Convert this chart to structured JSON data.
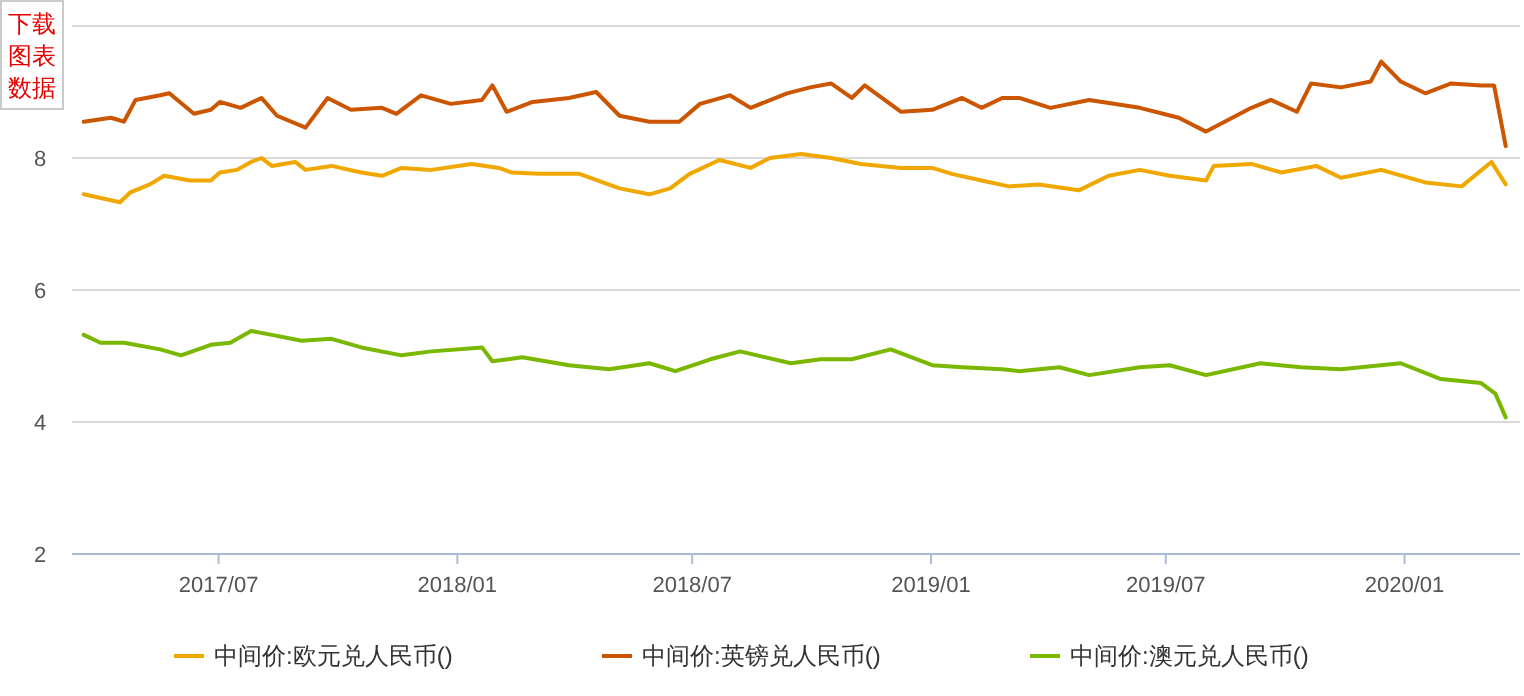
{
  "chart_data": {
    "type": "line",
    "xlim": [
      "2017-03-10",
      "2020-03-30"
    ],
    "ylim": [
      2,
      10
    ],
    "xticks": [
      {
        "value": "2017-07-01",
        "label": "2017/07"
      },
      {
        "value": "2018-01-01",
        "label": "2018/01"
      },
      {
        "value": "2018-07-01",
        "label": "2018/07"
      },
      {
        "value": "2019-01-01",
        "label": "2019/01"
      },
      {
        "value": "2019-07-01",
        "label": "2019/07"
      },
      {
        "value": "2020-01-01",
        "label": "2020/01"
      }
    ],
    "yticks": [
      2,
      4,
      6,
      8,
      {
        "value": 10,
        "label": null
      }
    ],
    "grid": "y",
    "legend": "bottom",
    "marker": "none",
    "line_style": "solid",
    "annotations": [
      "下载图表数据"
    ],
    "series": [
      {
        "name": "中间价:欧元兑人民币()",
        "color": "#f0a800",
        "x": [
          "2017-03-19",
          "2017-04-09",
          "2017-04-16",
          "2017-04-24",
          "2017-05-09",
          "2017-05-20",
          "2017-06-09",
          "2017-06-25",
          "2017-07-02",
          "2017-07-15",
          "2017-07-26",
          "2017-08-03",
          "2017-08-11",
          "2017-08-29",
          "2017-09-06",
          "2017-09-26",
          "2017-10-19",
          "2017-11-04",
          "2017-11-19",
          "2017-12-12",
          "2018-01-12",
          "2018-02-02",
          "2018-02-12",
          "2018-03-05",
          "2018-04-05",
          "2018-05-06",
          "2018-05-29",
          "2018-06-14",
          "2018-06-29",
          "2018-07-22",
          "2018-08-15",
          "2018-08-30",
          "2018-09-23",
          "2018-10-16",
          "2018-11-08",
          "2018-12-09",
          "2019-01-02",
          "2019-01-17",
          "2019-02-09",
          "2019-03-02",
          "2019-03-25",
          "2019-04-25",
          "2019-05-18",
          "2019-06-11",
          "2019-07-04",
          "2019-08-01",
          "2019-08-07",
          "2019-09-05",
          "2019-09-28",
          "2019-10-25",
          "2019-11-13",
          "2019-12-14",
          "2020-01-17",
          "2020-02-14",
          "2020-03-08",
          "2020-03-19"
        ],
        "values": [
          7.45,
          7.36,
          7.33,
          7.48,
          7.6,
          7.73,
          7.66,
          7.66,
          7.78,
          7.82,
          7.94,
          8.0,
          7.88,
          7.94,
          7.82,
          7.88,
          7.78,
          7.73,
          7.85,
          7.82,
          7.91,
          7.85,
          7.78,
          7.76,
          7.76,
          7.54,
          7.45,
          7.54,
          7.76,
          7.97,
          7.85,
          8.0,
          8.06,
          8.0,
          7.91,
          7.85,
          7.85,
          7.76,
          7.66,
          7.57,
          7.6,
          7.51,
          7.73,
          7.82,
          7.73,
          7.66,
          7.88,
          7.91,
          7.78,
          7.88,
          7.7,
          7.82,
          7.63,
          7.57,
          7.94,
          7.6
        ]
      },
      {
        "name": "中间价:英镑兑人民币()",
        "color": "#cc5500",
        "x": [
          "2017-03-19",
          "2017-04-09",
          "2017-04-19",
          "2017-04-28",
          "2017-05-17",
          "2017-05-24",
          "2017-06-12",
          "2017-06-25",
          "2017-07-02",
          "2017-07-18",
          "2017-08-03",
          "2017-08-15",
          "2017-09-06",
          "2017-09-23",
          "2017-10-11",
          "2017-11-04",
          "2017-11-15",
          "2017-12-04",
          "2017-12-27",
          "2018-01-20",
          "2018-01-28",
          "2018-02-08",
          "2018-02-28",
          "2018-03-28",
          "2018-04-18",
          "2018-05-06",
          "2018-05-29",
          "2018-06-21",
          "2018-07-07",
          "2018-07-30",
          "2018-08-15",
          "2018-09-12",
          "2018-09-30",
          "2018-10-16",
          "2018-11-01",
          "2018-11-11",
          "2018-12-09",
          "2019-01-02",
          "2019-01-25",
          "2019-02-09",
          "2019-02-25",
          "2019-03-10",
          "2019-04-03",
          "2019-05-03",
          "2019-06-11",
          "2019-07-11",
          "2019-08-01",
          "2019-09-05",
          "2019-09-20",
          "2019-10-10",
          "2019-10-21",
          "2019-11-13",
          "2019-12-06",
          "2019-12-14",
          "2019-12-29",
          "2020-01-17",
          "2020-02-06",
          "2020-02-29",
          "2020-03-10",
          "2020-03-19"
        ],
        "values": [
          8.55,
          8.61,
          8.55,
          8.88,
          8.95,
          8.98,
          8.67,
          8.73,
          8.85,
          8.76,
          8.91,
          8.64,
          8.46,
          8.91,
          8.73,
          8.76,
          8.67,
          8.95,
          8.82,
          8.88,
          9.1,
          8.7,
          8.85,
          8.91,
          9.0,
          8.64,
          8.55,
          8.55,
          8.82,
          8.95,
          8.76,
          8.98,
          9.07,
          9.13,
          8.91,
          9.1,
          8.7,
          8.73,
          8.91,
          8.76,
          8.91,
          8.91,
          8.76,
          8.88,
          8.76,
          8.61,
          8.4,
          8.76,
          8.88,
          8.7,
          9.13,
          9.07,
          9.16,
          9.46,
          9.16,
          8.98,
          9.13,
          9.1,
          9.1,
          8.18
        ]
      },
      {
        "name": "中间价:澳元兑人民币()",
        "color": "#7ab800",
        "x": [
          "2017-03-19",
          "2017-04-01",
          "2017-04-19",
          "2017-05-17",
          "2017-06-02",
          "2017-06-25",
          "2017-07-10",
          "2017-07-26",
          "2017-08-11",
          "2017-09-03",
          "2017-09-26",
          "2017-10-19",
          "2017-11-19",
          "2017-12-12",
          "2018-01-20",
          "2018-01-28",
          "2018-02-20",
          "2018-03-28",
          "2018-04-28",
          "2018-05-29",
          "2018-06-18",
          "2018-07-15",
          "2018-08-07",
          "2018-09-15",
          "2018-10-08",
          "2018-11-01",
          "2018-12-01",
          "2019-01-02",
          "2019-01-25",
          "2019-02-25",
          "2019-03-10",
          "2019-04-10",
          "2019-05-03",
          "2019-06-11",
          "2019-07-04",
          "2019-08-01",
          "2019-09-12",
          "2019-10-13",
          "2019-11-13",
          "2019-12-29",
          "2020-01-29",
          "2020-02-29",
          "2020-03-11",
          "2020-03-19"
        ],
        "values": [
          5.32,
          5.2,
          5.2,
          5.1,
          5.01,
          5.17,
          5.2,
          5.38,
          5.32,
          5.23,
          5.26,
          5.13,
          5.01,
          5.07,
          5.13,
          4.92,
          4.98,
          4.86,
          4.8,
          4.89,
          4.77,
          4.95,
          5.07,
          4.89,
          4.95,
          4.95,
          5.1,
          4.86,
          4.83,
          4.8,
          4.77,
          4.83,
          4.71,
          4.83,
          4.86,
          4.71,
          4.89,
          4.83,
          4.8,
          4.89,
          4.65,
          4.59,
          4.43,
          4.07
        ]
      }
    ]
  }
}
